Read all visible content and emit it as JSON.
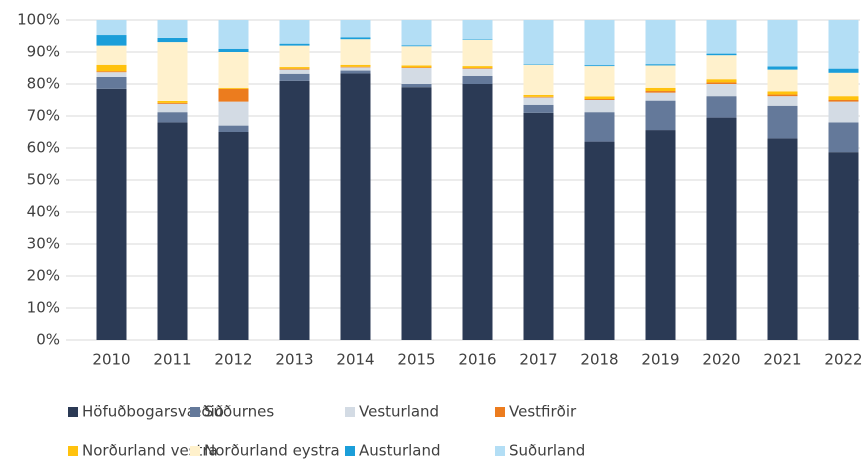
{
  "chart_data": {
    "type": "stacked_bar",
    "categories": [
      "2010",
      "2011",
      "2012",
      "2013",
      "2014",
      "2015",
      "2016",
      "2017",
      "2018",
      "2019",
      "2020",
      "2021",
      "2022"
    ],
    "series": [
      {
        "name": "Höfuðbogarsvæðið",
        "color": "#2b3a55",
        "values": [
          78.5,
          68,
          65,
          81,
          83.3,
          79,
          80,
          71,
          62,
          65.6,
          69.5,
          63,
          58.7
        ]
      },
      {
        "name": "Suðurnes",
        "color": "#64799a",
        "values": [
          3.7,
          3.2,
          2,
          2.2,
          0.9,
          1,
          2.5,
          2.5,
          9.2,
          9.2,
          6.7,
          10.2,
          9.3
        ]
      },
      {
        "name": "Vesturland",
        "color": "#d3dbe4",
        "values": [
          1.5,
          2.6,
          7.5,
          1.3,
          1,
          5,
          2.3,
          2.3,
          3.8,
          2.5,
          3.8,
          3,
          6.5
        ]
      },
      {
        "name": "Vestfirðir",
        "color": "#ec7c1e",
        "values": [
          0.3,
          0.3,
          4,
          0.3,
          0.2,
          0.2,
          0.2,
          0.2,
          0.3,
          0.5,
          0.5,
          0.5,
          0.5
        ]
      },
      {
        "name": "Norðurland vestra",
        "color": "#ffc20e",
        "values": [
          2,
          0.6,
          0.3,
          0.5,
          0.6,
          0.6,
          0.6,
          0.6,
          0.8,
          1,
          1,
          1,
          1.2
        ]
      },
      {
        "name": "Norðurland eystra",
        "color": "#fff1cc",
        "values": [
          6,
          18.4,
          11.2,
          6.7,
          8,
          6,
          8.2,
          9.4,
          9.5,
          7,
          7.5,
          6.8,
          7.3
        ]
      },
      {
        "name": "Austurland",
        "color": "#1b9ed9",
        "values": [
          3.3,
          1.3,
          1,
          0.6,
          0.6,
          0.3,
          0.2,
          0.2,
          0.3,
          0.4,
          0.5,
          1,
          1.3
        ]
      },
      {
        "name": "Suðurland",
        "color": "#b3def5",
        "values": [
          4.7,
          5.6,
          9,
          7.4,
          5.4,
          7.9,
          6,
          13.8,
          14.1,
          13.8,
          10.5,
          14.5,
          15.2
        ]
      }
    ],
    "ylim": [
      0,
      100
    ],
    "yticks": [
      {
        "value": 0,
        "label": "0%"
      },
      {
        "value": 10,
        "label": "10%"
      },
      {
        "value": 20,
        "label": "20%"
      },
      {
        "value": 30,
        "label": "30%"
      },
      {
        "value": 40,
        "label": "40%"
      },
      {
        "value": 50,
        "label": "50%"
      },
      {
        "value": 60,
        "label": "60%"
      },
      {
        "value": 70,
        "label": "70%"
      },
      {
        "value": 80,
        "label": "80%"
      },
      {
        "value": 90,
        "label": "90%"
      },
      {
        "value": 100,
        "label": "100%"
      }
    ],
    "grid": true,
    "legend": "bottom"
  }
}
